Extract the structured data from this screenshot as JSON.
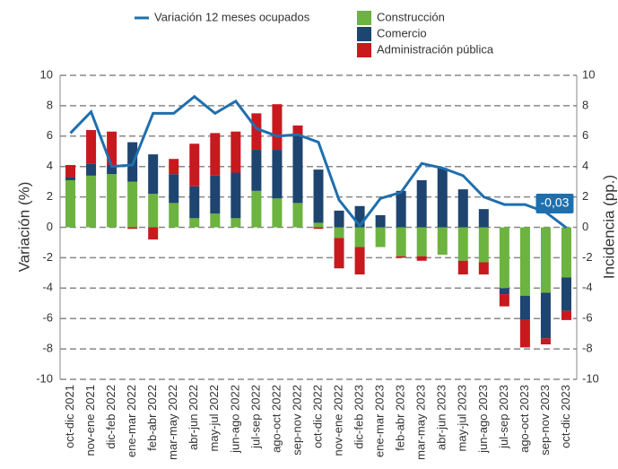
{
  "chart_data": {
    "type": "bar-line",
    "y_label": "Variación (%)",
    "y2_label": "Incidencia (pp.)",
    "categories": [
      "oct-dic 2021",
      "nov-ene 2021",
      "dic-feb 2022",
      "ene-mar 2022",
      "feb-abr 2022",
      "mar-may 2022",
      "abr-jun 2022",
      "may-jul 2022",
      "jun-ago 2022",
      "jul-sep 2022",
      "ago-oct 2022",
      "sep-nov 2022",
      "oct-dic 2022",
      "nov-ene 2022",
      "dic-feb 2023",
      "ene-mar 2023",
      "feb-abr 2023",
      "mar-may 2023",
      "abr-jun 2023",
      "may-jul 2023",
      "jun-ago 2023",
      "jul-sep 2023",
      "ago-oct 2023",
      "sep-nov 2023",
      "oct-dic 2023"
    ],
    "series": [
      {
        "name": "Variación 12 meses ocupados",
        "type": "line",
        "color": "#1f6fad",
        "values": [
          6.2,
          7.6,
          4.0,
          4.1,
          7.5,
          7.5,
          8.6,
          7.5,
          8.3,
          6.5,
          6.0,
          6.1,
          5.6,
          1.8,
          0.1,
          1.9,
          2.3,
          4.2,
          3.9,
          3.4,
          2.0,
          1.5,
          1.5,
          1.0,
          -0.03
        ],
        "value_labels": [
          null,
          null,
          null,
          null,
          null,
          null,
          null,
          null,
          null,
          null,
          null,
          null,
          null,
          null,
          null,
          null,
          null,
          null,
          null,
          null,
          null,
          null,
          null,
          null,
          "-0,03"
        ]
      },
      {
        "name": "Construcción",
        "type": "bar",
        "axis": "y2",
        "color": "#6db33f",
        "values": [
          3.1,
          3.4,
          3.5,
          3.0,
          2.2,
          1.6,
          0.6,
          0.9,
          0.6,
          2.4,
          1.9,
          1.6,
          0.3,
          -0.7,
          -1.3,
          -1.3,
          -1.9,
          -1.9,
          -1.8,
          -2.2,
          -2.3,
          -4.0,
          -4.5,
          -4.3,
          -3.3
        ]
      },
      {
        "name": "Comercio",
        "type": "bar",
        "axis": "y2",
        "color": "#1e4470",
        "values": [
          0.2,
          0.8,
          0.6,
          2.6,
          2.6,
          1.9,
          2.1,
          2.5,
          3.0,
          2.7,
          3.2,
          4.5,
          3.5,
          1.1,
          1.4,
          0.8,
          2.4,
          3.1,
          3.9,
          2.5,
          1.2,
          -0.4,
          -1.6,
          -3.0,
          -2.2
        ]
      },
      {
        "name": "Administración pública",
        "type": "bar",
        "axis": "y2",
        "color": "#c8191e",
        "values": [
          0.8,
          2.2,
          2.2,
          -0.1,
          -0.8,
          1.0,
          2.8,
          2.8,
          2.7,
          2.4,
          3.0,
          0.6,
          -0.1,
          -2.0,
          -1.8,
          0,
          -0.1,
          -0.3,
          0,
          -0.9,
          -0.8,
          -0.8,
          -1.8,
          -0.4,
          -0.6
        ]
      }
    ],
    "ylim": [
      -10,
      10
    ],
    "yticks": [
      -10,
      -8,
      -6,
      -4,
      -2,
      0,
      2,
      4,
      6,
      8,
      10
    ],
    "y2lim": [
      -10,
      10
    ],
    "y2ticks": [
      -10,
      -8,
      -6,
      -4,
      -2,
      0,
      2,
      4,
      6,
      8,
      10
    ],
    "grid": true
  }
}
